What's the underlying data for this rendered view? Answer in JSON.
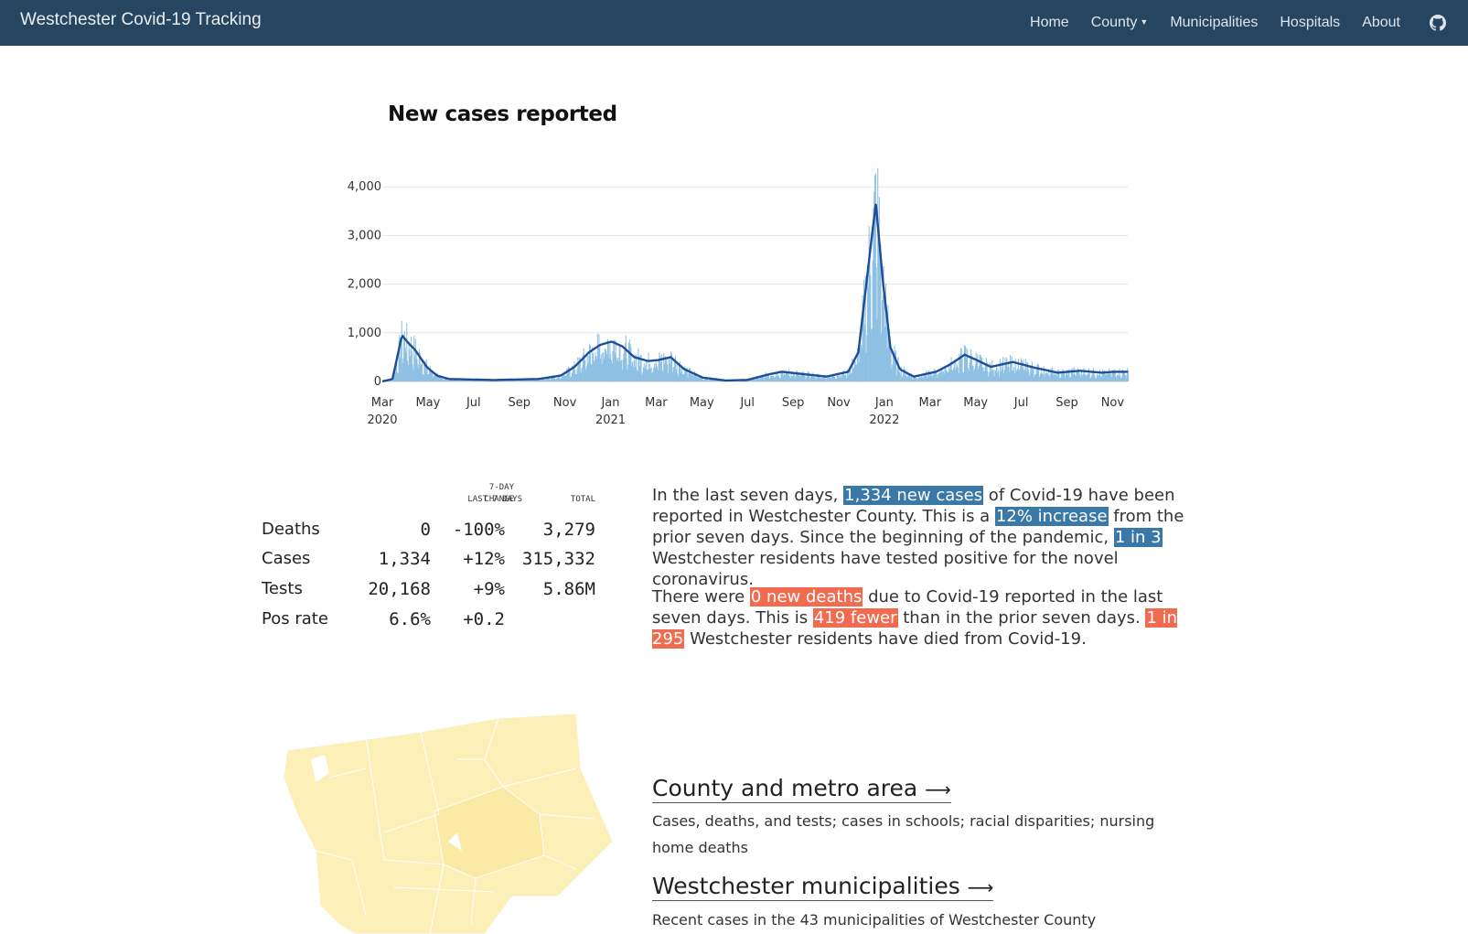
{
  "navbar": {
    "brand": "Westchester Covid-19 Tracking",
    "items": [
      "Home",
      "County",
      "Municipalities",
      "Hospitals",
      "About"
    ],
    "github_icon": "github-icon"
  },
  "chart_data": {
    "type": "bar",
    "title": "New cases reported",
    "overlay": "7-day rolling average line",
    "x_ticks": [
      {
        "label": "Mar",
        "year": "2020"
      },
      {
        "label": "May",
        "year": ""
      },
      {
        "label": "Jul",
        "year": ""
      },
      {
        "label": "Sep",
        "year": ""
      },
      {
        "label": "Nov",
        "year": ""
      },
      {
        "label": "Jan",
        "year": "2021"
      },
      {
        "label": "Mar",
        "year": ""
      },
      {
        "label": "May",
        "year": ""
      },
      {
        "label": "Jul",
        "year": ""
      },
      {
        "label": "Sep",
        "year": ""
      },
      {
        "label": "Nov",
        "year": ""
      },
      {
        "label": "Jan",
        "year": "2022"
      },
      {
        "label": "Mar",
        "year": ""
      },
      {
        "label": "May",
        "year": ""
      },
      {
        "label": "Jul",
        "year": ""
      },
      {
        "label": "Sep",
        "year": ""
      },
      {
        "label": "Nov",
        "year": ""
      }
    ],
    "y_ticks": [
      "0",
      "1,000",
      "2,000",
      "3,000",
      "4,000"
    ],
    "ylim": [
      0,
      4500
    ],
    "grid": true,
    "colors": {
      "bars": "#8ec0e4",
      "line": "#1f4e98",
      "grid": "#e4e4e4"
    },
    "rolling_average": [
      {
        "x": "2020-03-01",
        "y": 0
      },
      {
        "x": "2020-03-15",
        "y": 50
      },
      {
        "x": "2020-03-28",
        "y": 950
      },
      {
        "x": "2020-04-05",
        "y": 800
      },
      {
        "x": "2020-04-15",
        "y": 650
      },
      {
        "x": "2020-05-01",
        "y": 300
      },
      {
        "x": "2020-05-15",
        "y": 120
      },
      {
        "x": "2020-06-01",
        "y": 50
      },
      {
        "x": "2020-08-01",
        "y": 30
      },
      {
        "x": "2020-10-01",
        "y": 50
      },
      {
        "x": "2020-11-01",
        "y": 120
      },
      {
        "x": "2020-11-20",
        "y": 300
      },
      {
        "x": "2020-12-10",
        "y": 600
      },
      {
        "x": "2020-12-25",
        "y": 750
      },
      {
        "x": "2021-01-10",
        "y": 820
      },
      {
        "x": "2021-01-25",
        "y": 720
      },
      {
        "x": "2021-02-10",
        "y": 500
      },
      {
        "x": "2021-03-01",
        "y": 420
      },
      {
        "x": "2021-03-15",
        "y": 440
      },
      {
        "x": "2021-04-01",
        "y": 500
      },
      {
        "x": "2021-04-20",
        "y": 250
      },
      {
        "x": "2021-05-15",
        "y": 80
      },
      {
        "x": "2021-06-15",
        "y": 20
      },
      {
        "x": "2021-07-15",
        "y": 30
      },
      {
        "x": "2021-08-15",
        "y": 150
      },
      {
        "x": "2021-09-01",
        "y": 200
      },
      {
        "x": "2021-10-01",
        "y": 150
      },
      {
        "x": "2021-11-01",
        "y": 100
      },
      {
        "x": "2021-12-01",
        "y": 200
      },
      {
        "x": "2021-12-15",
        "y": 600
      },
      {
        "x": "2022-01-01",
        "y": 2800
      },
      {
        "x": "2022-01-08",
        "y": 3650
      },
      {
        "x": "2022-01-18",
        "y": 2000
      },
      {
        "x": "2022-01-28",
        "y": 700
      },
      {
        "x": "2022-02-10",
        "y": 250
      },
      {
        "x": "2022-03-01",
        "y": 100
      },
      {
        "x": "2022-04-01",
        "y": 200
      },
      {
        "x": "2022-04-20",
        "y": 350
      },
      {
        "x": "2022-05-10",
        "y": 550
      },
      {
        "x": "2022-05-25",
        "y": 450
      },
      {
        "x": "2022-06-15",
        "y": 300
      },
      {
        "x": "2022-07-15",
        "y": 400
      },
      {
        "x": "2022-08-15",
        "y": 280
      },
      {
        "x": "2022-09-15",
        "y": 180
      },
      {
        "x": "2022-10-15",
        "y": 220
      },
      {
        "x": "2022-11-15",
        "y": 180
      },
      {
        "x": "2022-12-01",
        "y": 200
      }
    ]
  },
  "stats": {
    "headers": {
      "last7": "LAST 7 DAYS",
      "change_top": "7-DAY",
      "change_bottom": "CHANGE",
      "total": "TOTAL"
    },
    "rows": [
      {
        "label": "Deaths",
        "last7": "0",
        "change": "-100%",
        "total": "3,279"
      },
      {
        "label": "Cases",
        "last7": "1,334",
        "change": "+12%",
        "total": "315,332"
      },
      {
        "label": "Tests",
        "last7": "20,168",
        "change": "+9%",
        "total": "5.86M"
      },
      {
        "label": "Pos rate",
        "last7": "6.6%",
        "change": "+0.2",
        "total": ""
      }
    ]
  },
  "summary": {
    "p1": {
      "t1": "In the last seven days, ",
      "h1": "1,334 new cases",
      "t2": " of Covid-19 have been reported in Westchester County. This is a ",
      "h2": "12% increase",
      "t3": " from the prior seven days. Since the beginning of the pandemic, ",
      "h3": "1 in 3",
      "t4": " Westchester residents have tested positive for the novel coronavirus."
    },
    "p2": {
      "t1": "There were ",
      "h1": "0 new deaths",
      "t2": " due to Covid-19 reported in the last seven days. This is ",
      "h2": "419 fewer",
      "t3": " than in the prior seven days. ",
      "h3": "1 in 295",
      "t4": " Westchester residents have died from Covid-19."
    }
  },
  "links": [
    {
      "title": "County and metro area",
      "arrow": "⟶",
      "desc": "Cases, deaths, and tests; cases in schools; racial disparities; nursing home deaths"
    },
    {
      "title": "Westchester municipalities",
      "arrow": "⟶",
      "desc": "Recent cases in the 43 municipalities of Westchester County"
    }
  ],
  "map": {
    "fill": "#fcefb8",
    "highlight": "#fbe9a6",
    "stroke": "#ffffff"
  }
}
